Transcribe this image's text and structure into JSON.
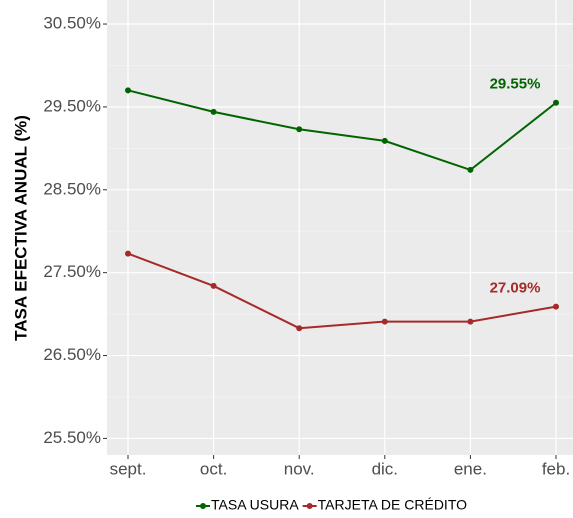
{
  "chart_data": {
    "type": "line",
    "y_label": "TASA EFECTIVA ANUAL (%)",
    "categories": [
      "sept.",
      "oct.",
      "nov.",
      "dic.",
      "ene.",
      "feb."
    ],
    "series": [
      {
        "name": "TASA USURA",
        "color": "#006400",
        "values": [
          29.7,
          29.44,
          29.23,
          29.09,
          28.74,
          29.55
        ],
        "value_labels": [
          null,
          null,
          null,
          null,
          null,
          "29.55%"
        ]
      },
      {
        "name": "TARJETA DE CRÉDITO",
        "color": "#a52a2a",
        "values": [
          27.73,
          27.34,
          26.83,
          26.91,
          26.91,
          27.09
        ],
        "value_labels": [
          null,
          null,
          null,
          null,
          null,
          "27.09%"
        ]
      }
    ],
    "ylim": [
      25.3,
      30.79
    ],
    "yticks": [
      {
        "value": 25.5,
        "label": "25.50%"
      },
      {
        "value": 26.5,
        "label": "26.50%"
      },
      {
        "value": 27.5,
        "label": "27.50%"
      },
      {
        "value": 28.5,
        "label": "28.50%"
      },
      {
        "value": 29.5,
        "label": "29.50%"
      },
      {
        "value": 30.5,
        "label": "30.50%"
      }
    ],
    "grid": true,
    "legend": "bottom"
  }
}
